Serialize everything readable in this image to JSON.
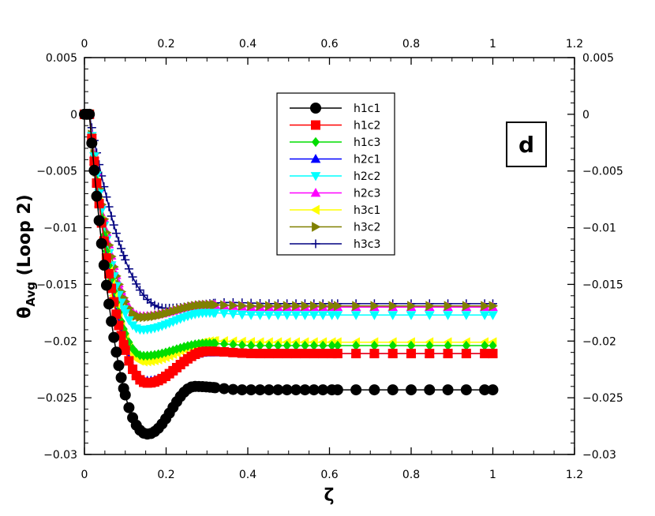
{
  "chart_data": {
    "type": "line",
    "panel_label": "d",
    "xlabel": "ζ",
    "ylabel_main": "θ",
    "ylabel_sub": "Avg",
    "ylabel_rest": " (Loop 2)",
    "xlim": [
      0,
      1.2
    ],
    "ylim": [
      -0.03,
      0.005
    ],
    "x_ticks": [
      0,
      0.2,
      0.4,
      0.6,
      0.8,
      1,
      1.2
    ],
    "x_tick_labels": [
      "0",
      "0.2",
      "0.4",
      "0.6",
      "0.8",
      "1",
      "1.2"
    ],
    "y_ticks": [
      0.005,
      0,
      -0.005,
      -0.01,
      -0.015,
      -0.02,
      -0.025,
      -0.03
    ],
    "y_tick_labels": [
      "0.005",
      "0",
      "−0.005",
      "−0.01",
      "−0.015",
      "−0.02",
      "−0.025",
      "−0.03"
    ],
    "grid": false,
    "legend_position": "top-center",
    "series": [
      {
        "name": "h1c1",
        "color": "#000000",
        "marker": "circle",
        "min_x": 0.155,
        "min_y": -0.0282,
        "over_x": 0.27,
        "over_y": -0.024,
        "final_y": -0.0243
      },
      {
        "name": "h1c2",
        "color": "#ff0000",
        "marker": "square",
        "min_x": 0.155,
        "min_y": -0.0237,
        "over_x": 0.3,
        "over_y": -0.0209,
        "final_y": -0.0211
      },
      {
        "name": "h1c3",
        "color": "#00dd00",
        "marker": "diamond",
        "min_x": 0.145,
        "min_y": -0.0213,
        "over_x": 0.3,
        "over_y": -0.0202,
        "final_y": -0.0204
      },
      {
        "name": "h2c1",
        "color": "#0000ff",
        "marker": "triangle-up",
        "min_x": 0.155,
        "min_y": -0.0235,
        "over_x": 0.3,
        "over_y": -0.021,
        "final_y": -0.0211
      },
      {
        "name": "h2c2",
        "color": "#00ffff",
        "marker": "triangle-down",
        "min_x": 0.14,
        "min_y": -0.019,
        "over_x": 0.3,
        "over_y": -0.0175,
        "final_y": -0.0177
      },
      {
        "name": "h2c3",
        "color": "#ff00ff",
        "marker": "triangle-up",
        "min_x": 0.14,
        "min_y": -0.0178,
        "over_x": 0.3,
        "over_y": -0.0168,
        "final_y": -0.017
      },
      {
        "name": "h3c1",
        "color": "#ffff00",
        "marker": "triangle-left",
        "min_x": 0.145,
        "min_y": -0.0218,
        "over_x": 0.32,
        "over_y": -0.02,
        "final_y": -0.0201
      },
      {
        "name": "h3c2",
        "color": "#808000",
        "marker": "triangle-right",
        "min_x": 0.14,
        "min_y": -0.0179,
        "over_x": 0.3,
        "over_y": -0.0168,
        "final_y": -0.0169
      },
      {
        "name": "h3c3",
        "color": "#000080",
        "marker": "plus",
        "min_x": 0.2,
        "min_y": -0.0171,
        "over_x": 0.35,
        "over_y": -0.0166,
        "final_y": -0.0167
      }
    ]
  }
}
